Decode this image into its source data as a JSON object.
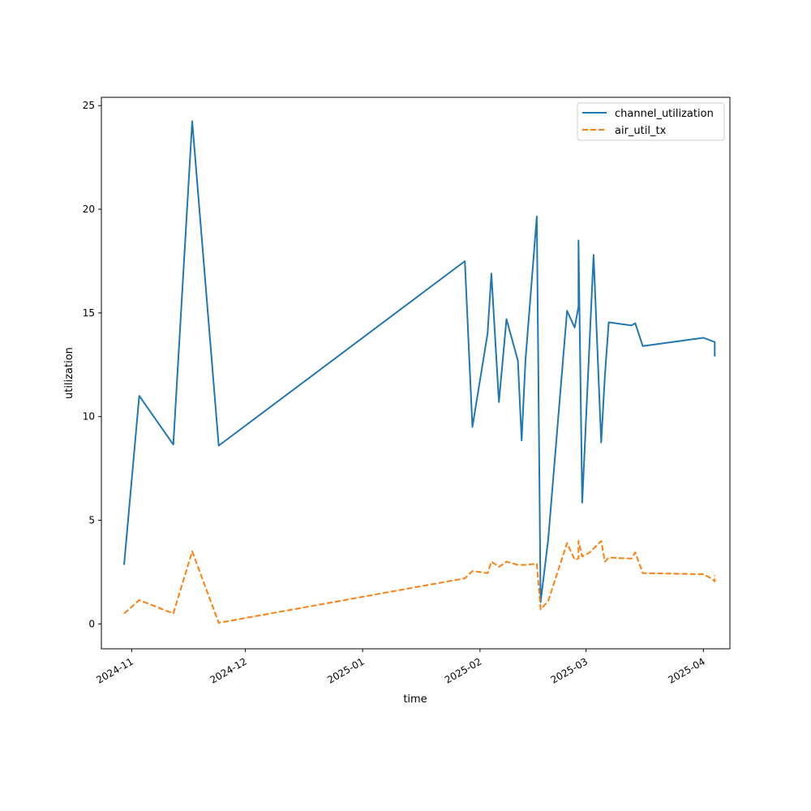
{
  "chart_data": {
    "type": "line",
    "xlabel": "time",
    "ylabel": "utilization",
    "xlim": [
      "2024-10-24",
      "2025-04-08"
    ],
    "ylim": [
      -1.2,
      25.4
    ],
    "grid": false,
    "legend_position": "top-right",
    "x_ticks": [
      {
        "date": "2024-11-01",
        "label": "2024-11"
      },
      {
        "date": "2024-12-01",
        "label": "2024-12"
      },
      {
        "date": "2025-01-01",
        "label": "2025-01"
      },
      {
        "date": "2025-02-01",
        "label": "2025-02"
      },
      {
        "date": "2025-03-01",
        "label": "2025-03"
      },
      {
        "date": "2025-04-01",
        "label": "2025-04"
      }
    ],
    "y_ticks": [
      0,
      5,
      10,
      15,
      20,
      25
    ],
    "series": [
      {
        "name": "channel_utilization",
        "color": "#1f77b4",
        "style": "solid",
        "points": [
          [
            "2024-10-30",
            2.85
          ],
          [
            "2024-11-03",
            11.0
          ],
          [
            "2024-11-12",
            8.65
          ],
          [
            "2024-11-17",
            24.25
          ],
          [
            "2024-11-24",
            8.6
          ],
          [
            "2025-01-28",
            17.5
          ],
          [
            "2025-01-30",
            9.5
          ],
          [
            "2025-02-03",
            14.0
          ],
          [
            "2025-02-04",
            16.9
          ],
          [
            "2025-02-06",
            10.7
          ],
          [
            "2025-02-08",
            14.7
          ],
          [
            "2025-02-11",
            12.7
          ],
          [
            "2025-02-12",
            8.85
          ],
          [
            "2025-02-13",
            12.7
          ],
          [
            "2025-02-16",
            19.65
          ],
          [
            "2025-02-17",
            1.05
          ],
          [
            "2025-02-19",
            4.05
          ],
          [
            "2025-02-24",
            15.1
          ],
          [
            "2025-02-26",
            14.3
          ],
          [
            "2025-02-27",
            15.3
          ],
          [
            "2025-02-27",
            18.5
          ],
          [
            "2025-02-28",
            5.85
          ],
          [
            "2025-03-03",
            17.8
          ],
          [
            "2025-03-05",
            8.75
          ],
          [
            "2025-03-06",
            12.0
          ],
          [
            "2025-03-07",
            14.55
          ],
          [
            "2025-03-13",
            14.4
          ],
          [
            "2025-03-14",
            14.5
          ],
          [
            "2025-03-16",
            13.4
          ],
          [
            "2025-04-01",
            13.8
          ],
          [
            "2025-04-04",
            13.6
          ],
          [
            "2025-04-04",
            12.9
          ]
        ]
      },
      {
        "name": "air_util_tx",
        "color": "#ff7f0e",
        "style": "dashed",
        "points": [
          [
            "2024-10-30",
            0.5
          ],
          [
            "2024-11-03",
            1.15
          ],
          [
            "2024-11-12",
            0.5
          ],
          [
            "2024-11-17",
            3.5
          ],
          [
            "2024-11-24",
            0.05
          ],
          [
            "2025-01-28",
            2.2
          ],
          [
            "2025-01-30",
            2.55
          ],
          [
            "2025-02-03",
            2.45
          ],
          [
            "2025-02-04",
            3.0
          ],
          [
            "2025-02-06",
            2.75
          ],
          [
            "2025-02-08",
            3.0
          ],
          [
            "2025-02-11",
            2.85
          ],
          [
            "2025-02-13",
            2.85
          ],
          [
            "2025-02-16",
            2.9
          ],
          [
            "2025-02-17",
            0.7
          ],
          [
            "2025-02-19",
            1.1
          ],
          [
            "2025-02-24",
            3.9
          ],
          [
            "2025-02-26",
            3.1
          ],
          [
            "2025-02-27",
            3.15
          ],
          [
            "2025-02-27",
            4.0
          ],
          [
            "2025-02-28",
            3.25
          ],
          [
            "2025-03-02",
            3.45
          ],
          [
            "2025-03-05",
            4.0
          ],
          [
            "2025-03-06",
            3.0
          ],
          [
            "2025-03-07",
            3.2
          ],
          [
            "2025-03-13",
            3.15
          ],
          [
            "2025-03-14",
            3.45
          ],
          [
            "2025-03-16",
            2.45
          ],
          [
            "2025-04-01",
            2.4
          ],
          [
            "2025-04-03",
            2.2
          ],
          [
            "2025-04-04",
            2.05
          ],
          [
            "2025-04-04",
            2.35
          ]
        ]
      }
    ]
  }
}
